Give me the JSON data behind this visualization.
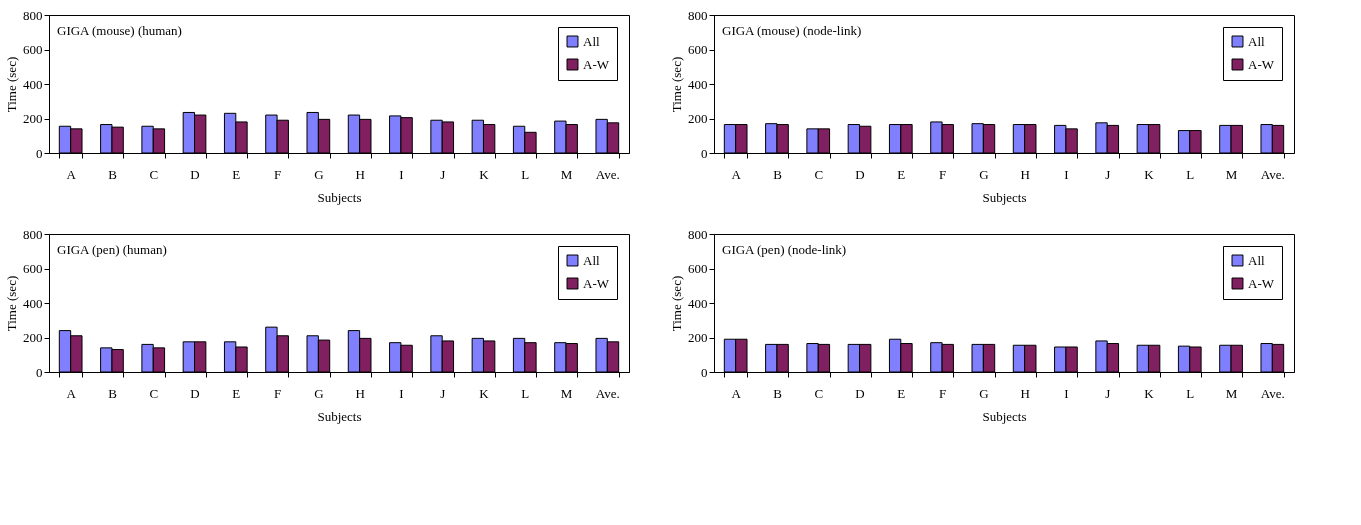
{
  "chart_data": [
    {
      "type": "bar",
      "title": "GIGA (mouse) (human)",
      "xlabel": "Subjects",
      "ylabel": "Time (sec)",
      "categories": [
        "A",
        "B",
        "C",
        "D",
        "E",
        "F",
        "G",
        "H",
        "I",
        "J",
        "K",
        "L",
        "M",
        "Ave."
      ],
      "ylim": [
        0,
        800
      ],
      "yticks": [
        0,
        200,
        400,
        600,
        800
      ],
      "legend": "top right",
      "series": [
        {
          "name": "All",
          "color": "#8080ff",
          "values": [
            155,
            165,
            155,
            235,
            230,
            220,
            235,
            220,
            215,
            190,
            190,
            155,
            185,
            195
          ]
        },
        {
          "name": "A-W",
          "color": "#802060",
          "values": [
            140,
            150,
            140,
            220,
            180,
            190,
            195,
            195,
            205,
            180,
            165,
            120,
            165,
            175
          ]
        }
      ]
    },
    {
      "type": "bar",
      "title": "GIGA (mouse) (node-link)",
      "xlabel": "Subjects",
      "ylabel": "Time (sec)",
      "categories": [
        "A",
        "B",
        "C",
        "D",
        "E",
        "F",
        "G",
        "H",
        "I",
        "J",
        "K",
        "L",
        "M",
        "Ave."
      ],
      "ylim": [
        0,
        800
      ],
      "yticks": [
        0,
        200,
        400,
        600,
        800
      ],
      "legend": "top right",
      "series": [
        {
          "name": "All",
          "color": "#8080ff",
          "values": [
            165,
            170,
            140,
            165,
            165,
            180,
            170,
            165,
            160,
            175,
            165,
            130,
            160,
            165
          ]
        },
        {
          "name": "A-W",
          "color": "#802060",
          "values": [
            165,
            165,
            140,
            155,
            165,
            165,
            165,
            165,
            140,
            160,
            165,
            130,
            160,
            160
          ]
        }
      ]
    },
    {
      "type": "bar",
      "title": "GIGA (pen) (human)",
      "xlabel": "Subjects",
      "ylabel": "Time (sec)",
      "categories": [
        "A",
        "B",
        "C",
        "D",
        "E",
        "F",
        "G",
        "H",
        "I",
        "J",
        "K",
        "L",
        "M",
        "Ave."
      ],
      "ylim": [
        0,
        800
      ],
      "yticks": [
        0,
        200,
        400,
        600,
        800
      ],
      "legend": "top right",
      "series": [
        {
          "name": "All",
          "color": "#8080ff",
          "values": [
            240,
            140,
            160,
            175,
            175,
            260,
            210,
            240,
            170,
            210,
            195,
            195,
            170,
            195
          ]
        },
        {
          "name": "A-W",
          "color": "#802060",
          "values": [
            210,
            130,
            140,
            175,
            145,
            210,
            185,
            195,
            155,
            180,
            180,
            170,
            165,
            175
          ]
        }
      ]
    },
    {
      "type": "bar",
      "title": "GIGA (pen) (node-link)",
      "xlabel": "Subjects",
      "ylabel": "Time (sec)",
      "categories": [
        "A",
        "B",
        "C",
        "D",
        "E",
        "F",
        "G",
        "H",
        "I",
        "J",
        "K",
        "L",
        "M",
        "Ave."
      ],
      "ylim": [
        0,
        800
      ],
      "yticks": [
        0,
        200,
        400,
        600,
        800
      ],
      "legend": "top right",
      "series": [
        {
          "name": "All",
          "color": "#8080ff",
          "values": [
            190,
            160,
            165,
            160,
            190,
            170,
            160,
            155,
            145,
            180,
            155,
            150,
            155,
            165
          ]
        },
        {
          "name": "A-W",
          "color": "#802060",
          "values": [
            190,
            160,
            160,
            160,
            165,
            160,
            160,
            155,
            145,
            165,
            155,
            145,
            155,
            160
          ]
        }
      ]
    }
  ]
}
